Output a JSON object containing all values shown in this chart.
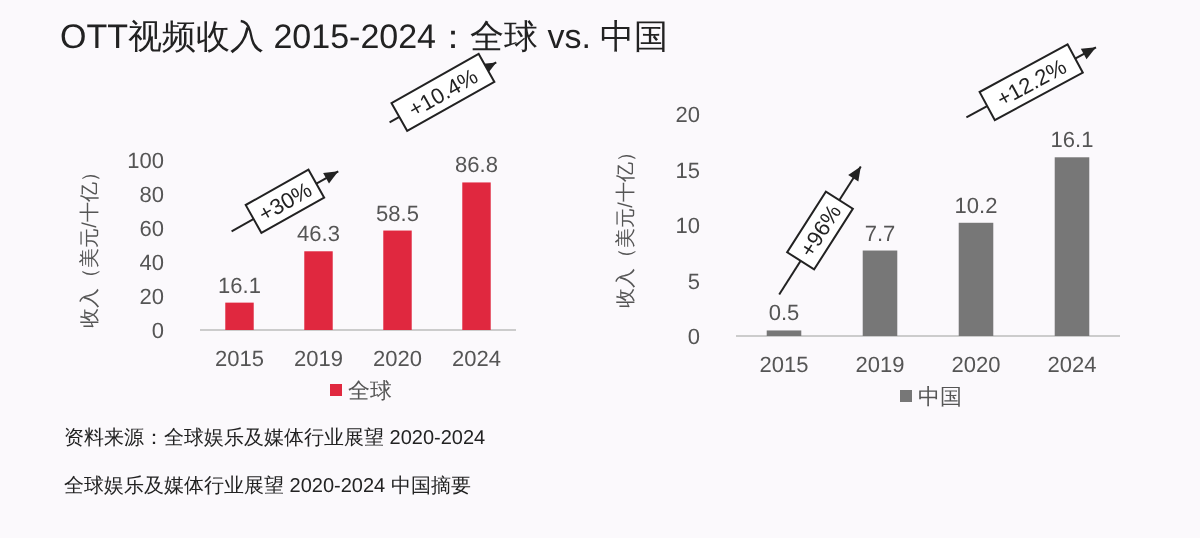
{
  "chart_data": [
    {
      "type": "bar",
      "title": "OTT视频收入 2015-2024：全球 vs. 中国",
      "ylabel": "收入（美元/十亿）",
      "categories": [
        "2015",
        "2019",
        "2020",
        "2024"
      ],
      "series": [
        {
          "name": "全球",
          "color": "#e0283f",
          "values": [
            16.1,
            46.3,
            58.5,
            86.8
          ]
        }
      ],
      "ylim": [
        0,
        100
      ],
      "yticks": [
        0,
        20,
        40,
        60,
        80,
        100
      ],
      "data_labels": true,
      "legend": "bottom",
      "grid": false,
      "annotations": [
        "+30%",
        "+10.4%"
      ]
    },
    {
      "type": "bar",
      "ylabel": "收入（美元/十亿）",
      "categories": [
        "2015",
        "2019",
        "2020",
        "2024"
      ],
      "series": [
        {
          "name": "中国",
          "color": "#777777",
          "values": [
            0.5,
            7.7,
            10.2,
            16.1
          ]
        }
      ],
      "ylim": [
        0,
        20
      ],
      "yticks": [
        0,
        5,
        10,
        15,
        20
      ],
      "data_labels": true,
      "legend": "bottom",
      "grid": false,
      "annotations": [
        "+96%",
        "+12.2%",
        "资料来源：全球娱乐及媒体行业展望 2020-2024",
        "全球娱乐及媒体行业展望 2020-2024 中国摘要"
      ]
    }
  ]
}
